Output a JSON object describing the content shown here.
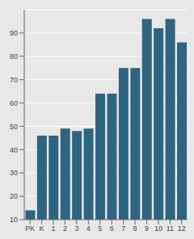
{
  "chart_data": {
    "type": "bar",
    "categories": [
      "PK",
      "K",
      "1",
      "2",
      "3",
      "4",
      "5",
      "6",
      "7",
      "8",
      "9",
      "10",
      "11",
      "12"
    ],
    "values": [
      14,
      46,
      46,
      49,
      48,
      49,
      64,
      64,
      75,
      75,
      96,
      92,
      96,
      86
    ],
    "color": "#2d6480",
    "ylim": [
      10,
      100
    ],
    "yticks": [
      10,
      20,
      30,
      40,
      50,
      60,
      70,
      80,
      90
    ],
    "grid": true
  }
}
